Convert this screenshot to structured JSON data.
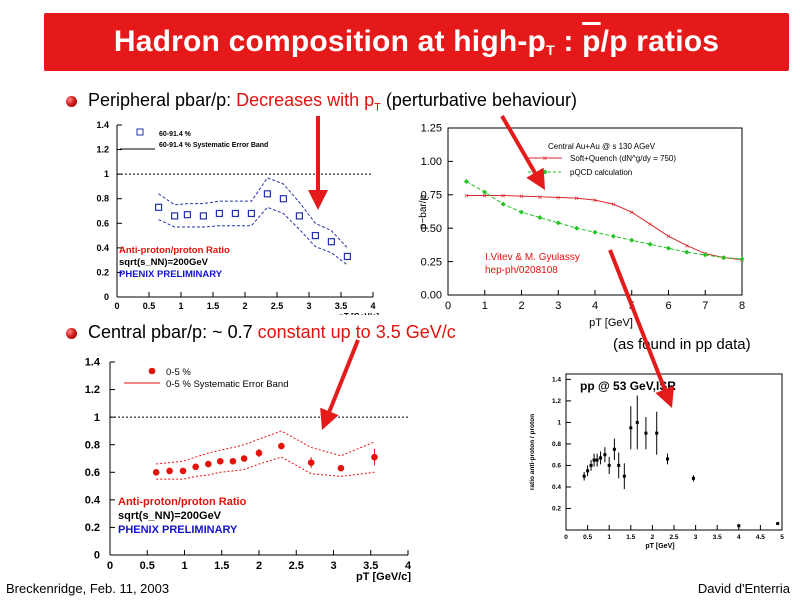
{
  "slide": {
    "title_pre": "Hadron composition at high-p",
    "title_sub": "T",
    "title_mid": " : ",
    "title_pbar": "p",
    "title_post": "/p ratios",
    "bullet1": {
      "label": "Peripheral pbar/p: ",
      "red": "Decreases with p",
      "red_sub": "T",
      "tail": " (perturbative behaviour)"
    },
    "bullet2": {
      "label": "Central pbar/p:  ~ 0.7 ",
      "red": "constant up to 3.5 GeV/c"
    },
    "side_note": "(as   found in pp data)",
    "footer_left": "Breckenridge, Feb. 11, 2003",
    "footer_right": "David d'Enterria",
    "arrow_color": "#e31b1b"
  },
  "chart_data": [
    {
      "id": "peripheral",
      "type": "scatter",
      "x": [
        0.65,
        0.9,
        1.1,
        1.35,
        1.6,
        1.85,
        2.1,
        2.35,
        2.6,
        2.85,
        3.1,
        3.35,
        3.6
      ],
      "y": [
        0.73,
        0.66,
        0.67,
        0.66,
        0.68,
        0.68,
        0.68,
        0.84,
        0.8,
        0.66,
        0.5,
        0.45,
        0.33
      ],
      "band_low": [
        0.63,
        0.57,
        0.57,
        0.57,
        0.58,
        0.58,
        0.58,
        0.73,
        0.68,
        0.55,
        0.41,
        0.36,
        0.26
      ],
      "band_high": [
        0.84,
        0.75,
        0.76,
        0.76,
        0.78,
        0.78,
        0.78,
        0.97,
        0.92,
        0.77,
        0.6,
        0.54,
        0.4
      ],
      "xlim": [
        0,
        4
      ],
      "ylim": [
        0,
        1.4
      ],
      "xticks": [
        "0",
        "0.5",
        "1",
        "1.5",
        "2",
        "2.5",
        "3",
        "3.5",
        "4"
      ],
      "yticks": [
        "0",
        "0.2",
        "0.4",
        "0.6",
        "0.8",
        "1",
        "1.2",
        "1.4"
      ],
      "xlabel": "pT [GeV/c]",
      "legend": [
        "60-91.4 %",
        "60-91.4 % Systematic Error Band"
      ],
      "texts": [
        "Anti-proton/proton Ratio",
        "sqrt(s_NN)=200GeV",
        "PHENIX PRELIMINARY"
      ]
    },
    {
      "id": "theory",
      "type": "line",
      "series": [
        {
          "name": "Soft+Quench (dN^g/dy = 750)",
          "x": [
            0.5,
            1,
            1.5,
            2,
            2.5,
            3,
            3.5,
            4,
            4.5,
            5,
            5.5,
            6,
            6.5,
            7,
            7.5,
            8
          ],
          "y": [
            0.745,
            0.745,
            0.745,
            0.74,
            0.735,
            0.73,
            0.725,
            0.71,
            0.68,
            0.62,
            0.53,
            0.44,
            0.37,
            0.31,
            0.28,
            0.265
          ],
          "color": "#d8262b"
        },
        {
          "name": "pQCD calculation",
          "x": [
            0.5,
            1,
            1.5,
            2,
            2.5,
            3,
            3.5,
            4,
            4.5,
            5,
            5.5,
            6,
            6.5,
            7,
            7.5,
            8
          ],
          "y": [
            0.85,
            0.77,
            0.68,
            0.62,
            0.58,
            0.54,
            0.5,
            0.47,
            0.44,
            0.41,
            0.38,
            0.35,
            0.32,
            0.3,
            0.28,
            0.27
          ],
          "color": "#23c326"
        }
      ],
      "xlim": [
        0,
        8
      ],
      "ylim": [
        0,
        1.25
      ],
      "xticks": [
        "0",
        "1",
        "2",
        "3",
        "4",
        "5",
        "6",
        "7",
        "8"
      ],
      "yticks": [
        "0.00",
        "0.25",
        "0.50",
        "0.75",
        "1.00",
        "1.25"
      ],
      "ylabel": "p−bar/p",
      "xlabel": "pT [GeV]",
      "legend_title": "Central Au+Au @ s    130 AGeV",
      "legend": [
        "Soft+Quench (dN^g/dy = 750)",
        "pQCD calculation"
      ],
      "texts": [
        "I.Vitev & M. Gyulassy",
        "hep-ph/0208108"
      ]
    },
    {
      "id": "central",
      "type": "scatter",
      "x": [
        0.62,
        0.8,
        0.98,
        1.15,
        1.32,
        1.48,
        1.65,
        1.8,
        2.0,
        2.3,
        2.7,
        3.1,
        3.55
      ],
      "y": [
        0.6,
        0.61,
        0.61,
        0.64,
        0.66,
        0.68,
        0.68,
        0.7,
        0.74,
        0.79,
        0.67,
        0.63,
        0.71
      ],
      "err": [
        0.01,
        0.01,
        0.01,
        0.01,
        0.01,
        0.01,
        0.01,
        0.02,
        0.03,
        0.02,
        0.04,
        0.02,
        0.06
      ],
      "band_low": [
        0.55,
        0.55,
        0.55,
        0.57,
        0.58,
        0.6,
        0.61,
        0.62,
        0.66,
        0.71,
        0.59,
        0.57,
        0.6
      ],
      "band_high": [
        0.66,
        0.67,
        0.68,
        0.71,
        0.74,
        0.76,
        0.78,
        0.8,
        0.84,
        0.9,
        0.78,
        0.72,
        0.82
      ],
      "xlim": [
        0,
        4
      ],
      "ylim": [
        0,
        1.4
      ],
      "xticks": [
        "0",
        "0.5",
        "1",
        "1.5",
        "2",
        "2.5",
        "3",
        "3.5",
        "4"
      ],
      "yticks": [
        "0",
        "0.2",
        "0.4",
        "0.6",
        "0.8",
        "1",
        "1.2",
        "1.4"
      ],
      "xlabel": "pT [GeV/c]",
      "legend": [
        "0-5 %",
        "0-5 % Systematic Error Band"
      ],
      "texts": [
        "Anti-proton/proton Ratio",
        "sqrt(s_NN)=200GeV",
        "PHENIX PRELIMINARY"
      ]
    },
    {
      "id": "pp",
      "type": "scatter",
      "x": [
        0.42,
        0.5,
        0.58,
        0.65,
        0.72,
        0.8,
        0.9,
        1.0,
        1.12,
        1.22,
        1.35,
        1.5,
        1.65,
        1.85,
        2.1,
        2.35,
        2.95,
        4.0,
        4.9
      ],
      "y": [
        0.5,
        0.55,
        0.6,
        0.65,
        0.65,
        0.67,
        0.7,
        0.6,
        0.75,
        0.6,
        0.5,
        0.95,
        1.0,
        0.9,
        0.9,
        0.66,
        0.48,
        0.04,
        0.06
      ],
      "err": [
        0.04,
        0.05,
        0.05,
        0.06,
        0.06,
        0.06,
        0.07,
        0.08,
        0.1,
        0.12,
        0.12,
        0.2,
        0.25,
        0.15,
        0.2,
        0.05,
        0.03,
        0.01,
        0.01
      ],
      "xlim": [
        0,
        5
      ],
      "ylim": [
        0,
        1.45
      ],
      "xticks": [
        "0",
        "0.5",
        "1",
        "1.5",
        "2",
        "2.5",
        "3",
        "3.5",
        "4",
        "4.5",
        "5"
      ],
      "yticks": [
        "0.2",
        "0.4",
        "0.6",
        "0.8",
        "1",
        "1.2",
        "1.4"
      ],
      "ylabel": "ratio  anti-proton / proton",
      "xlabel": "pT [GeV]",
      "legend": [
        "pp @ 53 GeV,ISR"
      ]
    }
  ]
}
